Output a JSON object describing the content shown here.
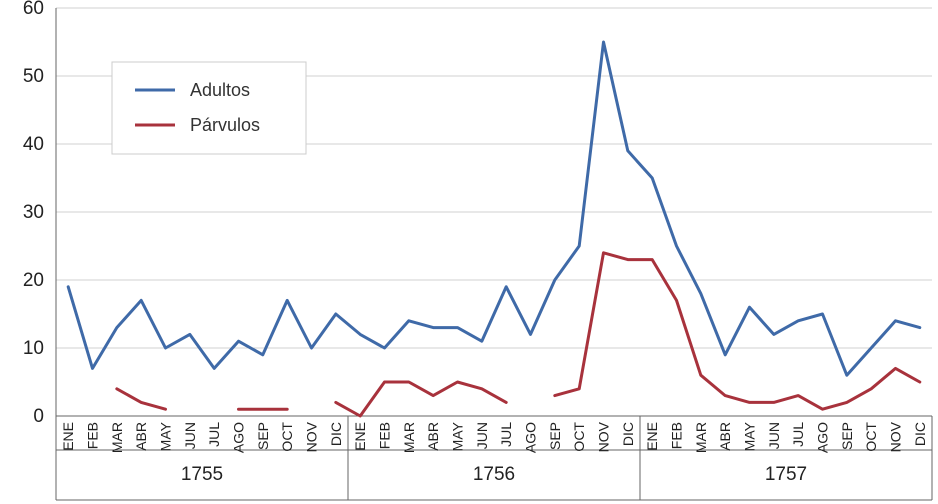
{
  "chart_data": {
    "type": "line",
    "categories": [
      "ENE",
      "FEB",
      "MAR",
      "ABR",
      "MAY",
      "JUN",
      "JUL",
      "AGO",
      "SEP",
      "OCT",
      "NOV",
      "DIC",
      "ENE",
      "FEB",
      "MAR",
      "ABR",
      "MAY",
      "JUN",
      "JUL",
      "AGO",
      "SEP",
      "OCT",
      "NOV",
      "DIC",
      "ENE",
      "FEB",
      "MAR",
      "ABR",
      "MAY",
      "JUN",
      "JUL",
      "AGO",
      "SEP",
      "OCT",
      "NOV",
      "DIC"
    ],
    "years": [
      "1755",
      "1756",
      "1757"
    ],
    "ylim": [
      0,
      60
    ],
    "yticks": [
      "0",
      "10",
      "20",
      "30",
      "40",
      "50",
      "60"
    ],
    "grid": true,
    "legend_position": "top-left",
    "series": [
      {
        "name": "Adultos",
        "color": "#3f6aa8",
        "values": [
          19,
          7,
          13,
          17,
          10,
          12,
          7,
          11,
          9,
          17,
          10,
          15,
          12,
          10,
          14,
          13,
          13,
          11,
          19,
          12,
          20,
          25,
          55,
          39,
          35,
          25,
          18,
          9,
          16,
          12,
          14,
          15,
          6,
          10,
          14,
          13
        ]
      },
      {
        "name": "Párvulos",
        "color": "#a8323c",
        "values": [
          null,
          null,
          4,
          2,
          1,
          null,
          null,
          1,
          1,
          1,
          null,
          2,
          0,
          5,
          5,
          3,
          5,
          4,
          2,
          null,
          3,
          4,
          24,
          23,
          23,
          17,
          6,
          3,
          2,
          2,
          3,
          1,
          2,
          4,
          7,
          5
        ]
      }
    ]
  }
}
